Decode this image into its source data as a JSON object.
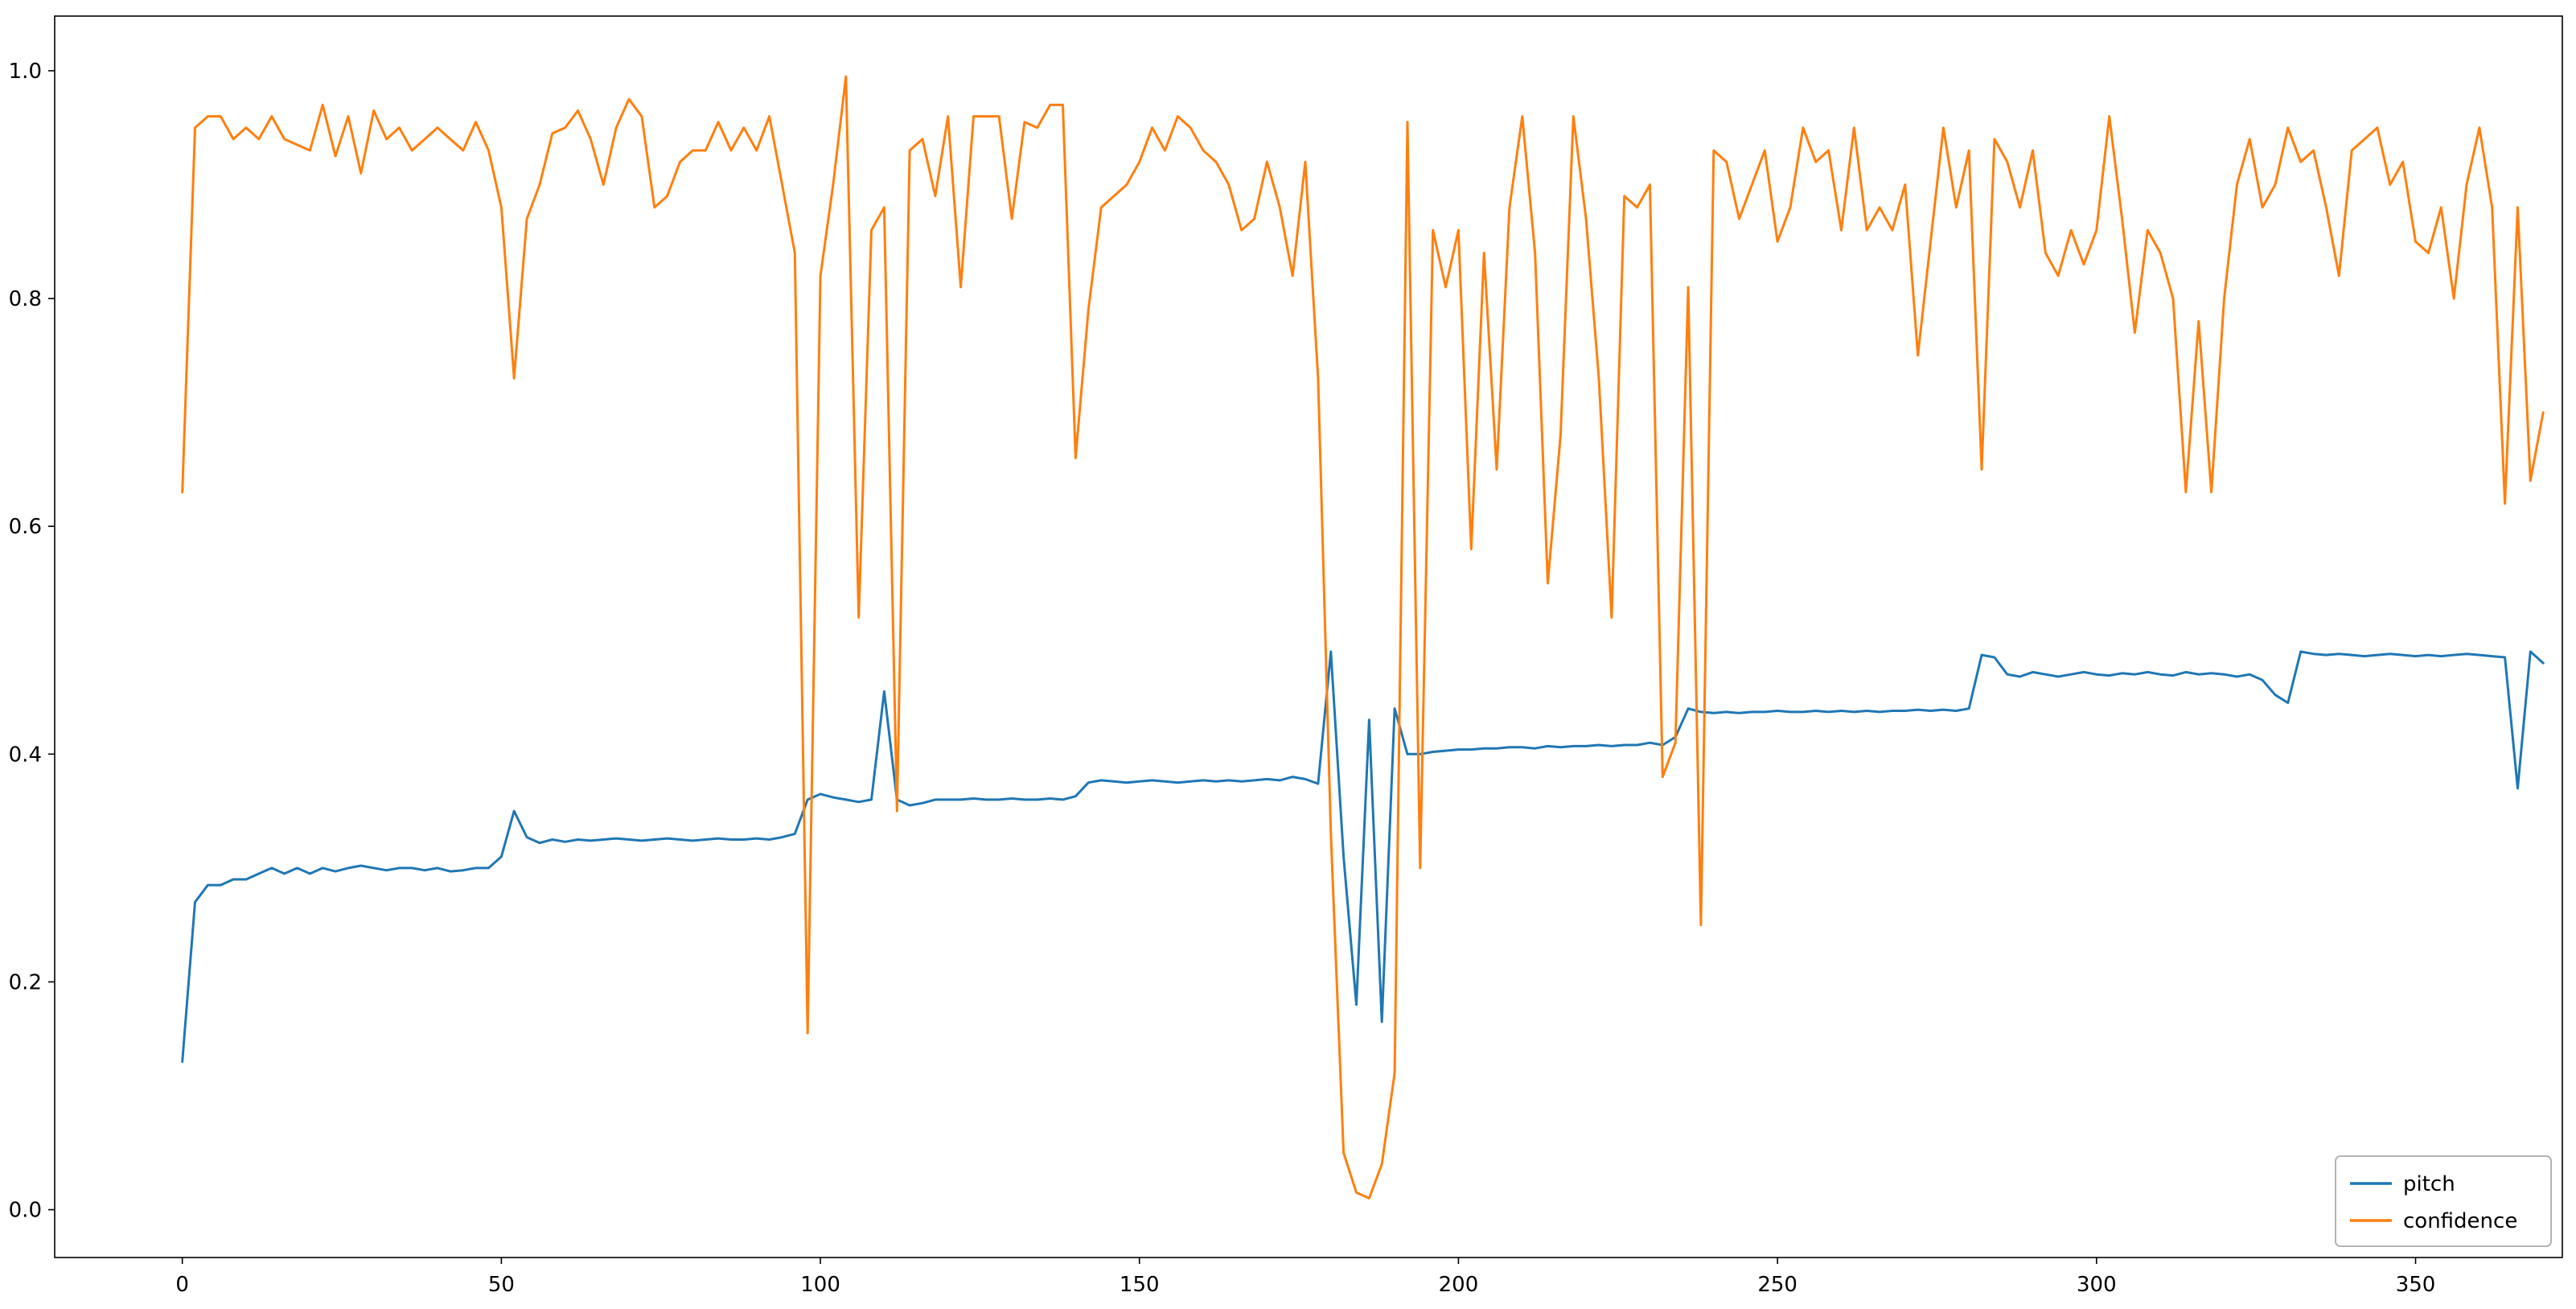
{
  "figure": {
    "background": "#ffffff",
    "frame_color": "#000000",
    "tick_color": "#000000"
  },
  "legend": {
    "position": "lower right",
    "border_color": "#b3b3b3",
    "background": "#ffffff",
    "entries": [
      "pitch",
      "confidence"
    ]
  },
  "chart_data": {
    "type": "line",
    "title": "",
    "xlabel": "",
    "ylabel": "",
    "xlim": [
      -20,
      373
    ],
    "ylim": [
      -0.042,
      1.048
    ],
    "grid": false,
    "x_ticks": [
      0,
      50,
      100,
      150,
      200,
      250,
      300,
      350
    ],
    "x_tick_labels": [
      "0",
      "50",
      "100",
      "150",
      "200",
      "250",
      "300",
      "350"
    ],
    "y_ticks": [
      0.0,
      0.2,
      0.4,
      0.6,
      0.8,
      1.0
    ],
    "y_tick_labels": [
      "0.0",
      "0.2",
      "0.4",
      "0.6",
      "0.8",
      "1.0"
    ],
    "legend_position": "lower right",
    "x": [
      0,
      2,
      4,
      6,
      8,
      10,
      12,
      14,
      16,
      18,
      20,
      22,
      24,
      26,
      28,
      30,
      32,
      34,
      36,
      38,
      40,
      42,
      44,
      46,
      48,
      50,
      52,
      54,
      56,
      58,
      60,
      62,
      64,
      66,
      68,
      70,
      72,
      74,
      76,
      78,
      80,
      82,
      84,
      86,
      88,
      90,
      92,
      94,
      96,
      98,
      100,
      102,
      104,
      106,
      108,
      110,
      112,
      114,
      116,
      118,
      120,
      122,
      124,
      126,
      128,
      130,
      132,
      134,
      136,
      138,
      140,
      142,
      144,
      146,
      148,
      150,
      152,
      154,
      156,
      158,
      160,
      162,
      164,
      166,
      168,
      170,
      172,
      174,
      176,
      178,
      180,
      182,
      184,
      186,
      188,
      190,
      192,
      194,
      196,
      198,
      200,
      202,
      204,
      206,
      208,
      210,
      212,
      214,
      216,
      218,
      220,
      222,
      224,
      226,
      228,
      230,
      232,
      234,
      236,
      238,
      240,
      242,
      244,
      246,
      248,
      250,
      252,
      254,
      256,
      258,
      260,
      262,
      264,
      266,
      268,
      270,
      272,
      274,
      276,
      278,
      280,
      282,
      284,
      286,
      288,
      290,
      292,
      294,
      296,
      298,
      300,
      302,
      304,
      306,
      308,
      310,
      312,
      314,
      316,
      318,
      320,
      322,
      324,
      326,
      328,
      330,
      332,
      334,
      336,
      338,
      340,
      342,
      344,
      346,
      348,
      350,
      352,
      354,
      356,
      358,
      360,
      362,
      364,
      366,
      368,
      370
    ],
    "series": [
      {
        "name": "pitch",
        "color": "#1f77b4",
        "values": [
          0.13,
          0.27,
          0.285,
          0.285,
          0.29,
          0.29,
          0.295,
          0.3,
          0.295,
          0.3,
          0.295,
          0.3,
          0.297,
          0.3,
          0.302,
          0.3,
          0.298,
          0.3,
          0.3,
          0.298,
          0.3,
          0.297,
          0.298,
          0.3,
          0.3,
          0.31,
          0.35,
          0.327,
          0.322,
          0.325,
          0.323,
          0.325,
          0.324,
          0.325,
          0.326,
          0.325,
          0.324,
          0.325,
          0.326,
          0.325,
          0.324,
          0.325,
          0.326,
          0.325,
          0.325,
          0.326,
          0.325,
          0.327,
          0.33,
          0.36,
          0.365,
          0.362,
          0.36,
          0.358,
          0.36,
          0.455,
          0.36,
          0.355,
          0.357,
          0.36,
          0.36,
          0.36,
          0.361,
          0.36,
          0.36,
          0.361,
          0.36,
          0.36,
          0.361,
          0.36,
          0.363,
          0.375,
          0.377,
          0.376,
          0.375,
          0.376,
          0.377,
          0.376,
          0.375,
          0.376,
          0.377,
          0.376,
          0.377,
          0.376,
          0.377,
          0.378,
          0.377,
          0.38,
          0.378,
          0.374,
          0.49,
          0.31,
          0.18,
          0.43,
          0.165,
          0.44,
          0.4,
          0.4,
          0.402,
          0.403,
          0.404,
          0.404,
          0.405,
          0.405,
          0.406,
          0.406,
          0.405,
          0.407,
          0.406,
          0.407,
          0.407,
          0.408,
          0.407,
          0.408,
          0.408,
          0.41,
          0.408,
          0.415,
          0.44,
          0.437,
          0.436,
          0.437,
          0.436,
          0.437,
          0.437,
          0.438,
          0.437,
          0.437,
          0.438,
          0.437,
          0.438,
          0.437,
          0.438,
          0.437,
          0.438,
          0.438,
          0.439,
          0.438,
          0.439,
          0.438,
          0.44,
          0.487,
          0.485,
          0.47,
          0.468,
          0.472,
          0.47,
          0.468,
          0.47,
          0.472,
          0.47,
          0.469,
          0.471,
          0.47,
          0.472,
          0.47,
          0.469,
          0.472,
          0.47,
          0.471,
          0.47,
          0.468,
          0.47,
          0.465,
          0.452,
          0.445,
          0.49,
          0.488,
          0.487,
          0.488,
          0.487,
          0.486,
          0.487,
          0.488,
          0.487,
          0.486,
          0.487,
          0.486,
          0.487,
          0.488,
          0.487,
          0.486,
          0.485,
          0.37,
          0.49,
          0.48
        ]
      },
      {
        "name": "confidence",
        "color": "#ff7f0e",
        "values": [
          0.63,
          0.95,
          0.96,
          0.96,
          0.94,
          0.95,
          0.94,
          0.96,
          0.94,
          0.935,
          0.93,
          0.97,
          0.925,
          0.96,
          0.91,
          0.965,
          0.94,
          0.95,
          0.93,
          0.94,
          0.95,
          0.94,
          0.93,
          0.955,
          0.93,
          0.88,
          0.73,
          0.87,
          0.9,
          0.945,
          0.95,
          0.965,
          0.94,
          0.9,
          0.95,
          0.975,
          0.96,
          0.88,
          0.89,
          0.92,
          0.93,
          0.93,
          0.955,
          0.93,
          0.95,
          0.93,
          0.96,
          0.9,
          0.84,
          0.155,
          0.82,
          0.9,
          0.995,
          0.52,
          0.86,
          0.88,
          0.35,
          0.93,
          0.94,
          0.89,
          0.96,
          0.81,
          0.96,
          0.96,
          0.96,
          0.87,
          0.955,
          0.95,
          0.97,
          0.97,
          0.66,
          0.79,
          0.88,
          0.89,
          0.9,
          0.92,
          0.95,
          0.93,
          0.96,
          0.95,
          0.93,
          0.92,
          0.9,
          0.86,
          0.87,
          0.92,
          0.88,
          0.82,
          0.92,
          0.73,
          0.33,
          0.05,
          0.015,
          0.01,
          0.04,
          0.12,
          0.955,
          0.3,
          0.86,
          0.81,
          0.86,
          0.58,
          0.84,
          0.65,
          0.88,
          0.96,
          0.84,
          0.55,
          0.68,
          0.96,
          0.87,
          0.73,
          0.52,
          0.89,
          0.88,
          0.9,
          0.38,
          0.41,
          0.81,
          0.25,
          0.93,
          0.92,
          0.87,
          0.9,
          0.93,
          0.85,
          0.88,
          0.95,
          0.92,
          0.93,
          0.86,
          0.95,
          0.86,
          0.88,
          0.86,
          0.9,
          0.75,
          0.85,
          0.95,
          0.88,
          0.93,
          0.65,
          0.94,
          0.92,
          0.88,
          0.93,
          0.84,
          0.82,
          0.86,
          0.83,
          0.86,
          0.96,
          0.87,
          0.77,
          0.86,
          0.84,
          0.8,
          0.63,
          0.78,
          0.63,
          0.8,
          0.9,
          0.94,
          0.88,
          0.9,
          0.95,
          0.92,
          0.93,
          0.88,
          0.82,
          0.93,
          0.94,
          0.95,
          0.9,
          0.92,
          0.85,
          0.84,
          0.88,
          0.8,
          0.9,
          0.95,
          0.88,
          0.62,
          0.88,
          0.64,
          0.7
        ]
      }
    ]
  }
}
